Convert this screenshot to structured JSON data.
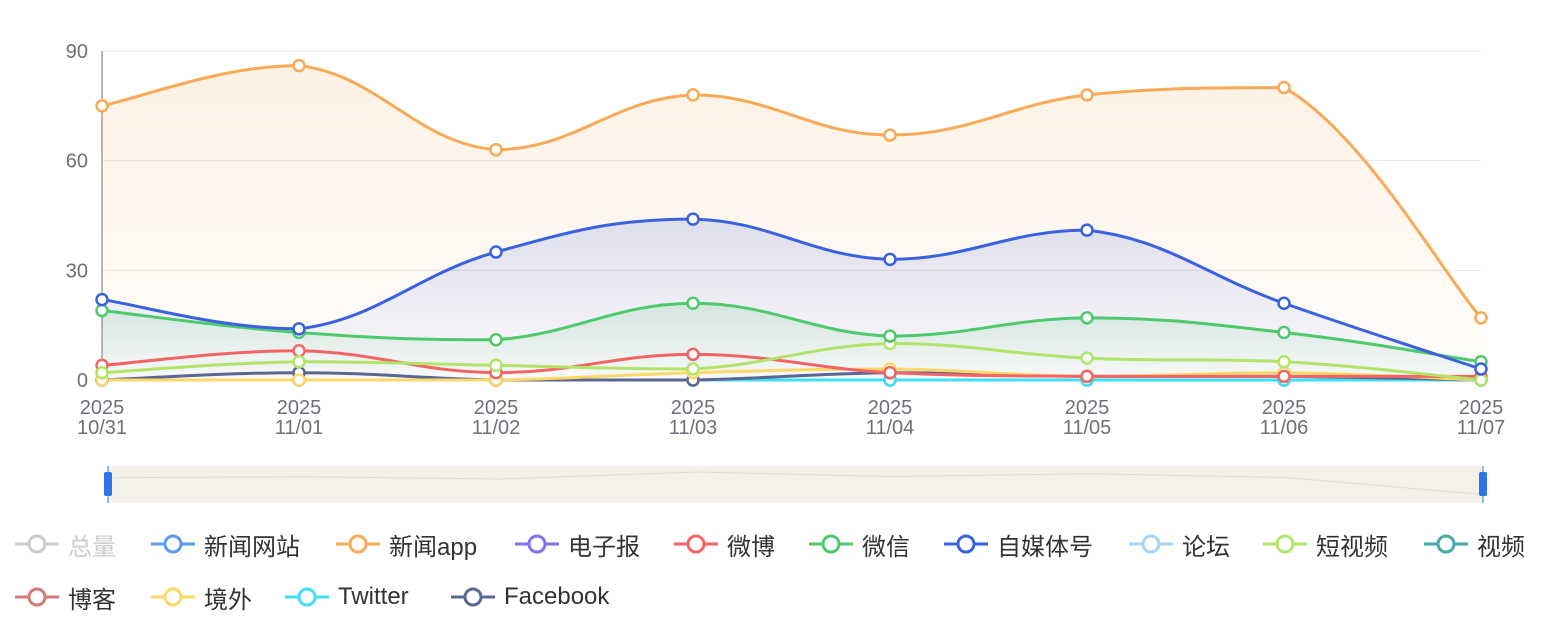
{
  "chart_data": {
    "type": "line",
    "smooth": true,
    "x": [
      [
        "2025",
        "10/31"
      ],
      [
        "2025",
        "11/01"
      ],
      [
        "2025",
        "11/02"
      ],
      [
        "2025",
        "11/03"
      ],
      [
        "2025",
        "11/04"
      ],
      [
        "2025",
        "11/05"
      ],
      [
        "2025",
        "11/06"
      ],
      [
        "2025",
        "11/07"
      ]
    ],
    "ylim": [
      0,
      90
    ],
    "yticks": [
      0,
      30,
      60,
      90
    ],
    "grid": true,
    "legend_placement": "bottom",
    "series": [
      {
        "name": "总量",
        "color": "#cccccc",
        "selected": false,
        "values": null,
        "area": false
      },
      {
        "name": "新闻网站",
        "color": "#5b9cf0",
        "selected": true,
        "values": [
          0,
          0,
          0,
          0,
          0,
          0,
          0,
          0
        ],
        "area": false
      },
      {
        "name": "新闻app",
        "color": "#f9aa57",
        "selected": true,
        "values": [
          75,
          86,
          63,
          78,
          67,
          78,
          80,
          17
        ],
        "area": true
      },
      {
        "name": "电子报",
        "color": "#8270f0",
        "selected": true,
        "values": [
          0,
          0,
          0,
          0,
          0,
          0,
          0,
          0
        ],
        "area": false
      },
      {
        "name": "微博",
        "color": "#f56464",
        "selected": true,
        "values": [
          4,
          8,
          2,
          7,
          2,
          1,
          1,
          1
        ],
        "area": false
      },
      {
        "name": "微信",
        "color": "#4ec96e",
        "selected": true,
        "values": [
          19,
          13,
          11,
          21,
          12,
          17,
          13,
          5
        ],
        "area": true
      },
      {
        "name": "自媒体号",
        "color": "#3a62e0",
        "selected": true,
        "values": [
          22,
          14,
          35,
          44,
          33,
          41,
          21,
          3
        ],
        "area": true
      },
      {
        "name": "论坛",
        "color": "#a8d4f7",
        "selected": true,
        "values": [
          0,
          0,
          0,
          0,
          0,
          0,
          0,
          0
        ],
        "area": false
      },
      {
        "name": "短视频",
        "color": "#b3e46a",
        "selected": true,
        "values": [
          2,
          5,
          4,
          3,
          10,
          6,
          5,
          0
        ],
        "area": false
      },
      {
        "name": "视频",
        "color": "#46a9a9",
        "selected": true,
        "values": [
          0,
          0,
          0,
          0,
          0,
          0,
          0,
          0
        ],
        "area": false
      },
      {
        "name": "博客",
        "color": "#d47878",
        "selected": true,
        "values": [
          0,
          0,
          0,
          0,
          0,
          0,
          0,
          0
        ],
        "area": false
      },
      {
        "name": "境外",
        "color": "#fdd868",
        "selected": true,
        "values": [
          0,
          0,
          0,
          2,
          3,
          1,
          2,
          0
        ],
        "area": false
      },
      {
        "name": "Twitter",
        "color": "#3fe0f7",
        "selected": true,
        "values": [
          0,
          0,
          0,
          0,
          0,
          0,
          0,
          0
        ],
        "area": false
      },
      {
        "name": "Facebook",
        "color": "#5a6794",
        "selected": true,
        "values": [
          0,
          2,
          0,
          0,
          2,
          1,
          1,
          0
        ],
        "area": false
      }
    ],
    "datazoom": {
      "start": 0,
      "end": 100,
      "handle_color": "#2f74e6",
      "fill_color": "#f4f0ea"
    }
  }
}
